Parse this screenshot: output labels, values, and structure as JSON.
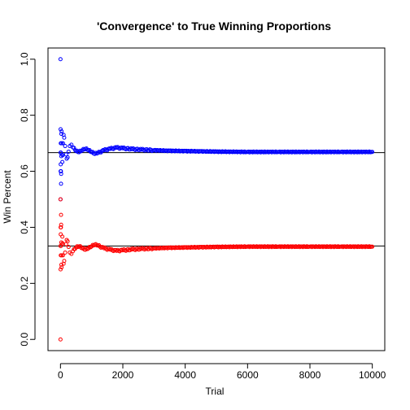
{
  "chart_data": {
    "type": "scatter",
    "title": "'Convergence' to True Winning Proportions",
    "xlabel": "Trial",
    "ylabel": "Win Percent",
    "xlim": [
      0,
      10000
    ],
    "ylim": [
      0,
      1
    ],
    "x_ticks": [
      "0",
      "2000",
      "4000",
      "6000",
      "8000",
      "10000"
    ],
    "y_ticks": [
      "0.0",
      "0.2",
      "0.4",
      "0.6",
      "0.8",
      "1.0"
    ],
    "grid": false,
    "marker": "open-circle",
    "reference_lines": [
      {
        "y": 0.6667,
        "color": "#000000"
      },
      {
        "y": 0.3333,
        "color": "#000000"
      }
    ],
    "series": [
      {
        "color": "#0000ff",
        "points": [
          [
            1,
            1.0
          ],
          [
            2,
            0.5
          ],
          [
            3,
            0.6667
          ],
          [
            4,
            0.75
          ],
          [
            5,
            0.6
          ],
          [
            6,
            0.6667
          ],
          [
            8,
            0.625
          ],
          [
            10,
            0.7
          ],
          [
            12,
            0.6667
          ],
          [
            15,
            0.6
          ],
          [
            18,
            0.5556
          ],
          [
            22,
            0.5909
          ],
          [
            26,
            0.6538
          ],
          [
            30,
            0.7333
          ],
          [
            35,
            0.7429
          ],
          [
            40,
            0.7
          ],
          [
            50,
            0.66
          ],
          [
            60,
            0.6333
          ],
          [
            70,
            0.6571
          ],
          [
            80,
            0.7
          ],
          [
            100,
            0.73
          ],
          [
            120,
            0.72
          ],
          [
            150,
            0.69
          ],
          [
            180,
            0.66
          ],
          [
            200,
            0.645
          ],
          [
            230,
            0.65
          ],
          [
            260,
            0.67
          ],
          [
            300,
            0.69
          ],
          [
            350,
            0.695
          ],
          [
            400,
            0.685
          ],
          [
            500,
            0.672
          ],
          [
            600,
            0.668
          ],
          [
            700,
            0.675
          ],
          [
            800,
            0.68
          ],
          [
            900,
            0.675
          ],
          [
            1000,
            0.668
          ],
          [
            1100,
            0.662
          ],
          [
            1200,
            0.665
          ],
          [
            1400,
            0.675
          ],
          [
            1600,
            0.68
          ],
          [
            1800,
            0.684
          ],
          [
            2000,
            0.682
          ],
          [
            2300,
            0.679
          ],
          [
            2600,
            0.677
          ],
          [
            3000,
            0.675
          ],
          [
            3500,
            0.673
          ],
          [
            4000,
            0.672
          ],
          [
            4500,
            0.671
          ],
          [
            5000,
            0.67
          ],
          [
            6000,
            0.669
          ],
          [
            7000,
            0.669
          ],
          [
            8000,
            0.669
          ],
          [
            9000,
            0.669
          ],
          [
            10000,
            0.669
          ]
        ]
      },
      {
        "color": "#ff0000",
        "points": [
          [
            1,
            0.0
          ],
          [
            2,
            0.5
          ],
          [
            3,
            0.3333
          ],
          [
            4,
            0.25
          ],
          [
            5,
            0.4
          ],
          [
            6,
            0.3333
          ],
          [
            8,
            0.375
          ],
          [
            10,
            0.3
          ],
          [
            12,
            0.3333
          ],
          [
            15,
            0.4
          ],
          [
            18,
            0.4444
          ],
          [
            22,
            0.4091
          ],
          [
            26,
            0.3462
          ],
          [
            30,
            0.2667
          ],
          [
            35,
            0.2571
          ],
          [
            40,
            0.3
          ],
          [
            50,
            0.34
          ],
          [
            60,
            0.3667
          ],
          [
            70,
            0.3429
          ],
          [
            80,
            0.3
          ],
          [
            100,
            0.27
          ],
          [
            120,
            0.28
          ],
          [
            150,
            0.31
          ],
          [
            180,
            0.34
          ],
          [
            200,
            0.355
          ],
          [
            230,
            0.35
          ],
          [
            260,
            0.33
          ],
          [
            300,
            0.31
          ],
          [
            350,
            0.305
          ],
          [
            400,
            0.315
          ],
          [
            500,
            0.328
          ],
          [
            600,
            0.332
          ],
          [
            700,
            0.325
          ],
          [
            800,
            0.32
          ],
          [
            900,
            0.325
          ],
          [
            1000,
            0.332
          ],
          [
            1100,
            0.338
          ],
          [
            1200,
            0.335
          ],
          [
            1400,
            0.325
          ],
          [
            1600,
            0.32
          ],
          [
            1800,
            0.316
          ],
          [
            2000,
            0.318
          ],
          [
            2300,
            0.321
          ],
          [
            2600,
            0.323
          ],
          [
            3000,
            0.325
          ],
          [
            3500,
            0.327
          ],
          [
            4000,
            0.328
          ],
          [
            4500,
            0.329
          ],
          [
            5000,
            0.33
          ],
          [
            6000,
            0.331
          ],
          [
            7000,
            0.331
          ],
          [
            8000,
            0.331
          ],
          [
            9000,
            0.331
          ],
          [
            10000,
            0.331
          ]
        ]
      }
    ]
  }
}
